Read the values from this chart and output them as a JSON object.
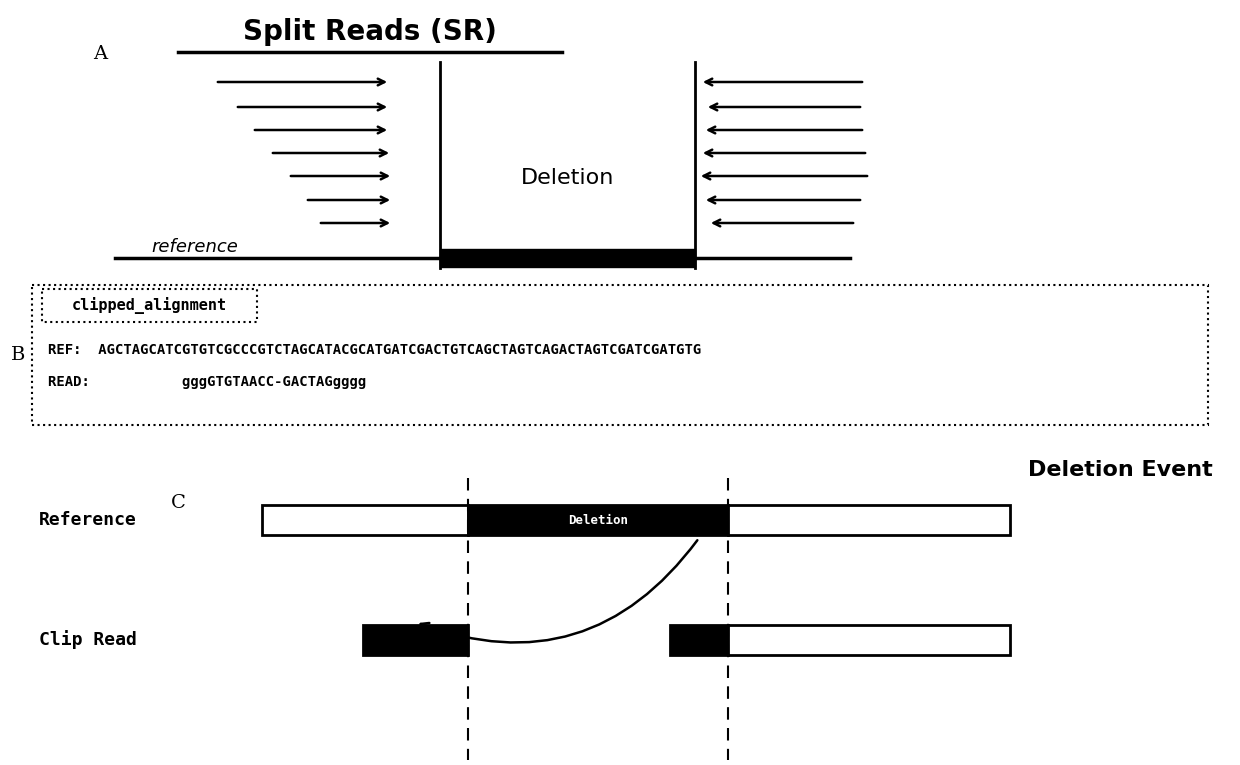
{
  "title": "Split Reads (SR)",
  "label_A": "A",
  "label_B": "B",
  "label_C": "C",
  "deletion_text": "Deletion",
  "deletion_event_text": "Deletion Event",
  "reference_label": "reference",
  "clipped_alignment_label": "clipped_alignment",
  "ref_seq": "REF:  AGCTAGCATCGTGTCGCCCGTCTAGCATACGCATGATCGACTGTCAGCTAGTCAGACTAGTCGATCGATGTG",
  "read_seq": "READ:           gggGTGTAACC-GACTAGgggg",
  "reference_label_c": "Reference",
  "clip_read_label": "Clip Read",
  "deletion_label_c": "Deletion",
  "bg_color": "#ffffff",
  "black": "#000000"
}
